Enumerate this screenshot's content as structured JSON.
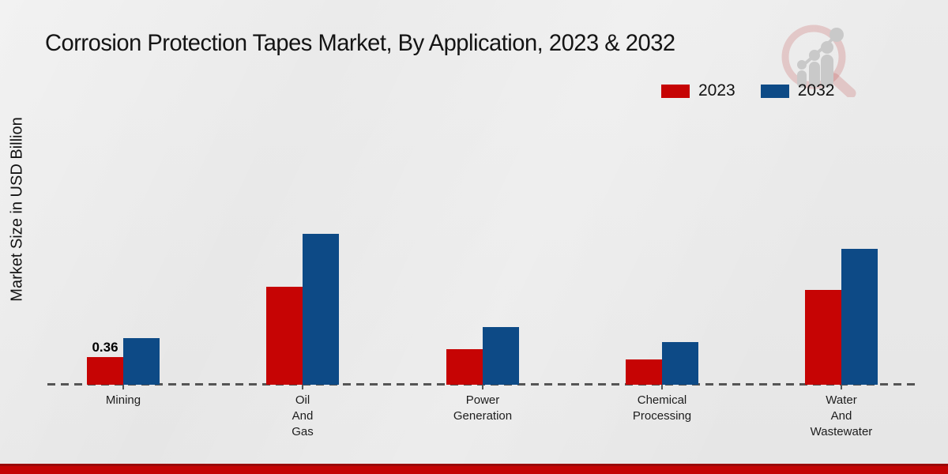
{
  "chart_data": {
    "type": "bar",
    "title": "Corrosion Protection Tapes Market, By Application, 2023 & 2032",
    "ylabel": "Market Size in USD Billion",
    "xlabel": "",
    "categories": [
      "Mining",
      "Oil\nAnd\nGas",
      "Power\nGeneration",
      "Chemical\nProcessing",
      "Water\nAnd\nWastewater"
    ],
    "series": [
      {
        "name": "2023",
        "color": "#c60404",
        "values": [
          0.36,
          1.28,
          0.46,
          0.33,
          1.23
        ]
      },
      {
        "name": "2032",
        "color": "#0d4a86",
        "values": [
          0.61,
          1.96,
          0.75,
          0.56,
          1.77
        ]
      }
    ],
    "bar_labels": [
      {
        "series": 0,
        "category": 0,
        "text": "0.36"
      }
    ],
    "ylim": [
      0,
      2.05
    ],
    "grid": "off",
    "legend_position": "top-right",
    "x_axis_style": "dashed"
  },
  "colors": {
    "series_2023_red": "#c60404",
    "series_2032_blue": "#0d4a86",
    "footer_accent_line": "#9a0909",
    "footer_accent_bar": "#c40404",
    "axis_dash": "#555555",
    "background": "#e9e9e9"
  }
}
